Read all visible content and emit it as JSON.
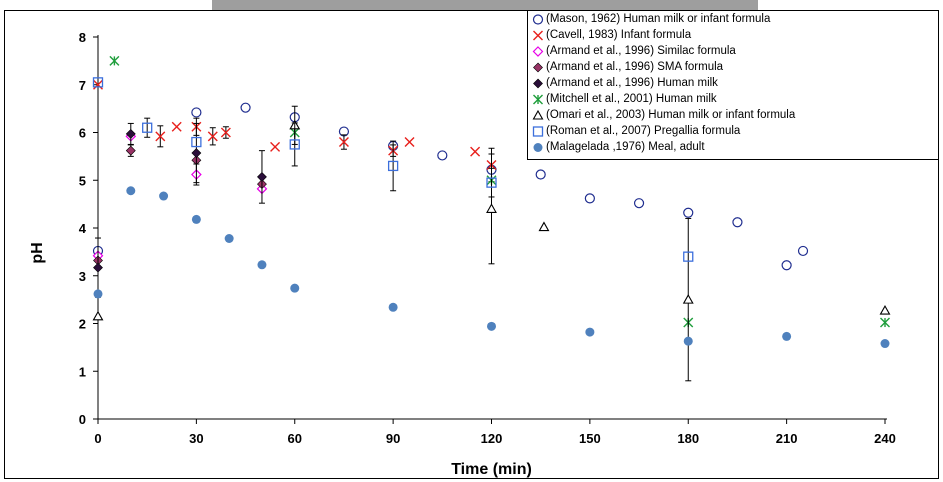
{
  "chart_data": {
    "type": "scatter",
    "title": "",
    "xlabel": "Time (min)",
    "ylabel": "pH",
    "xlim": [
      0,
      240
    ],
    "ylim": [
      0,
      8
    ],
    "xticks": [
      0,
      30,
      60,
      90,
      120,
      150,
      180,
      210,
      240
    ],
    "yticks": [
      0,
      1,
      2,
      3,
      4,
      5,
      6,
      7,
      8
    ],
    "grid": false,
    "legend_position": "top-right",
    "series": [
      {
        "name": "(Mason, 1962) Human milk or infant formula",
        "marker": "circle-open",
        "color": "#1f2d8f",
        "points": [
          [
            0,
            3.52
          ],
          [
            30,
            6.42
          ],
          [
            45,
            6.52
          ],
          [
            60,
            6.32
          ],
          [
            75,
            6.02
          ],
          [
            90,
            5.72
          ],
          [
            105,
            5.52
          ],
          [
            120,
            5.22
          ],
          [
            135,
            5.12
          ],
          [
            150,
            4.62
          ],
          [
            165,
            4.52
          ],
          [
            180,
            4.32
          ],
          [
            195,
            4.12
          ],
          [
            210,
            3.22
          ],
          [
            215,
            3.52
          ]
        ]
      },
      {
        "name": "(Cavell, 1983) Infant formula",
        "marker": "x",
        "color": "#e8201c",
        "points": [
          [
            0,
            7.0
          ],
          [
            19,
            5.92
          ],
          [
            24,
            6.12
          ],
          [
            30,
            6.12
          ],
          [
            35,
            5.92
          ],
          [
            39,
            6.0
          ],
          [
            54,
            5.7
          ],
          [
            75,
            5.8
          ],
          [
            90,
            5.62
          ],
          [
            95,
            5.8
          ],
          [
            115,
            5.6
          ],
          [
            120,
            5.32
          ]
        ],
        "errors": [
          [
            19,
            0.22
          ],
          [
            30,
            0.18
          ],
          [
            35,
            0.18
          ],
          [
            39,
            0.12
          ],
          [
            75,
            0.15
          ],
          [
            90,
            0.12
          ],
          [
            120,
            0.35
          ]
        ]
      },
      {
        "name": "(Armand et al., 1996) Similac formula",
        "marker": "diamond-open",
        "color": "#e800e8",
        "points": [
          [
            0,
            3.42
          ],
          [
            10,
            5.92
          ],
          [
            30,
            5.12
          ],
          [
            50,
            4.82
          ]
        ],
        "errors": [
          [
            30,
            0.22
          ]
        ]
      },
      {
        "name": "(Armand et al., 1996) SMA formula",
        "marker": "diamond-filled",
        "color": "#993366",
        "points": [
          [
            0,
            3.32
          ],
          [
            10,
            5.62
          ],
          [
            30,
            5.42
          ],
          [
            50,
            4.92
          ]
        ],
        "errors": [
          [
            10,
            0.12
          ]
        ]
      },
      {
        "name": "(Armand et al., 1996) Human milk",
        "marker": "diamond-filled",
        "color": "#2a0e3a",
        "points": [
          [
            0,
            3.17
          ],
          [
            10,
            5.97
          ],
          [
            30,
            5.57
          ],
          [
            50,
            5.07
          ]
        ],
        "errors": [
          [
            0,
            0.62
          ],
          [
            10,
            0.22
          ],
          [
            30,
            0.62
          ],
          [
            50,
            0.55
          ]
        ]
      },
      {
        "name": "(Mitchell et al., 2001) Human milk",
        "marker": "asterisk",
        "color": "#1f9e3c",
        "points": [
          [
            5,
            7.5
          ],
          [
            60,
            6.0
          ],
          [
            120,
            5.0
          ],
          [
            180,
            2.02
          ],
          [
            240,
            2.02
          ]
        ]
      },
      {
        "name": "(Omari et al., 2003) Human milk or infant formula",
        "marker": "triangle-open",
        "color": "#000000",
        "points": [
          [
            0,
            2.15
          ],
          [
            60,
            6.15
          ],
          [
            120,
            4.4
          ],
          [
            136,
            4.02
          ],
          [
            180,
            2.5
          ],
          [
            240,
            2.27
          ]
        ],
        "errors": [
          [
            60,
            0.4
          ],
          [
            120,
            1.15
          ],
          [
            180,
            1.7
          ]
        ]
      },
      {
        "name": "(Roman et al., 2007) Pregallia formula",
        "marker": "square-open",
        "color": "#3c6fdc",
        "points": [
          [
            0,
            7.05
          ],
          [
            15,
            6.1
          ],
          [
            30,
            5.8
          ],
          [
            60,
            5.75
          ],
          [
            90,
            5.3
          ],
          [
            120,
            4.95
          ],
          [
            180,
            3.4
          ]
        ],
        "errors": [
          [
            15,
            0.2
          ],
          [
            60,
            0.45
          ],
          [
            90,
            0.52
          ],
          [
            120,
            0.3
          ]
        ]
      },
      {
        "name": "(Malagelada ,1976) Meal, adult",
        "marker": "circle-filled",
        "color": "#4f81bd",
        "points": [
          [
            0,
            2.62
          ],
          [
            10,
            4.78
          ],
          [
            20,
            4.67
          ],
          [
            30,
            4.18
          ],
          [
            40,
            3.78
          ],
          [
            50,
            3.23
          ],
          [
            60,
            2.74
          ],
          [
            90,
            2.34
          ],
          [
            120,
            1.94
          ],
          [
            150,
            1.82
          ],
          [
            180,
            1.63
          ],
          [
            210,
            1.73
          ],
          [
            240,
            1.58
          ]
        ]
      }
    ]
  }
}
